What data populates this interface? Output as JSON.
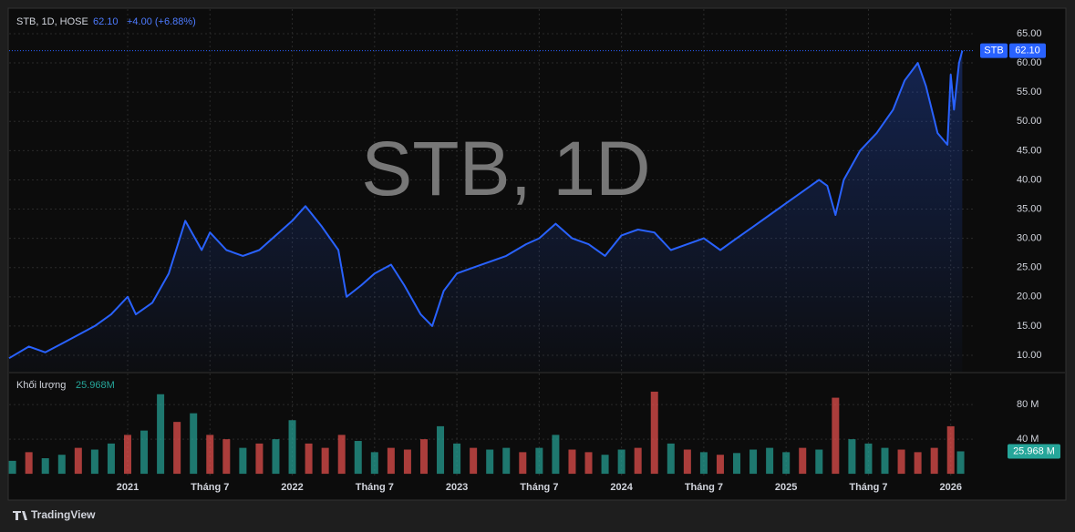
{
  "header": {
    "symbol": "STB, 1D, HOSE",
    "price": "62.10",
    "change": "+4.00 (+6.88%)",
    "watermark": "STB, 1D",
    "badge_symbol": "STB",
    "volume_label": "Khối lượng",
    "volume_value": "25.968M",
    "brand": "TradingView"
  },
  "chart_data": [
    {
      "type": "line",
      "color": "#2962ff",
      "grid": true,
      "x": [
        2020.28,
        2020.4,
        2020.5,
        2020.6,
        2020.7,
        2020.8,
        2020.9,
        2021.0,
        2021.05,
        2021.15,
        2021.25,
        2021.35,
        2021.45,
        2021.5,
        2021.6,
        2021.7,
        2021.8,
        2021.9,
        2022.0,
        2022.08,
        2022.18,
        2022.28,
        2022.33,
        2022.42,
        2022.5,
        2022.6,
        2022.68,
        2022.78,
        2022.85,
        2022.92,
        2023.0,
        2023.1,
        2023.2,
        2023.3,
        2023.42,
        2023.5,
        2023.6,
        2023.7,
        2023.8,
        2023.9,
        2024.0,
        2024.1,
        2024.2,
        2024.3,
        2024.4,
        2024.5,
        2024.6,
        2024.7,
        2024.8,
        2024.9,
        2025.0,
        2025.1,
        2025.2,
        2025.25,
        2025.3,
        2025.35,
        2025.45,
        2025.55,
        2025.65,
        2025.72,
        2025.8,
        2025.85,
        2025.92,
        2025.98,
        2026.0,
        2026.02,
        2026.05,
        2026.07
      ],
      "series": [
        {
          "name": "STB",
          "color": "#2962ff",
          "values": [
            9.5,
            11.5,
            10.5,
            12,
            13.5,
            15,
            17,
            20,
            17,
            19,
            24,
            33,
            28,
            31,
            28,
            27,
            28,
            30.5,
            33,
            35.5,
            32,
            28,
            20,
            22,
            24,
            25.5,
            22,
            17,
            15,
            21,
            24,
            25,
            26,
            27,
            29,
            30,
            32.5,
            30,
            29,
            27,
            30.5,
            31.5,
            31,
            28,
            29,
            30,
            28,
            30,
            32,
            34,
            36,
            38,
            40,
            39,
            34,
            40,
            45,
            48,
            52,
            57,
            60,
            56,
            48,
            46,
            58,
            52,
            60,
            62.1
          ]
        }
      ],
      "xlim": [
        2020.28,
        2026.14
      ],
      "xticks": [
        {
          "value": 2021,
          "label": "2021"
        },
        {
          "value": 2021.5,
          "label": "Tháng 7"
        },
        {
          "value": 2022,
          "label": "2022"
        },
        {
          "value": 2022.5,
          "label": "Tháng 7"
        },
        {
          "value": 2023,
          "label": "2023"
        },
        {
          "value": 2023.5,
          "label": "Tháng 7"
        },
        {
          "value": 2024,
          "label": "2024"
        },
        {
          "value": 2024.5,
          "label": "Tháng 7"
        },
        {
          "value": 2025,
          "label": "2025"
        },
        {
          "value": 2025.5,
          "label": "Tháng 7"
        },
        {
          "value": 2026,
          "label": "2026"
        }
      ],
      "ylim": [
        7.2,
        69.2
      ],
      "yticks": [
        {
          "value": 10,
          "label": "10.00"
        },
        {
          "value": 15,
          "label": "15.00"
        },
        {
          "value": 20,
          "label": "20.00"
        },
        {
          "value": 25,
          "label": "25.00"
        },
        {
          "value": 30,
          "label": "30.00"
        },
        {
          "value": 35,
          "label": "35.00"
        },
        {
          "value": 40,
          "label": "40.00"
        },
        {
          "value": 45,
          "label": "45.00"
        },
        {
          "value": 50,
          "label": "50.00"
        },
        {
          "value": 55,
          "label": "55.00"
        },
        {
          "value": 60,
          "label": "60.00"
        },
        {
          "value": 65,
          "label": "65.00"
        }
      ],
      "last_value": {
        "value": 62.1,
        "label": "62.10"
      }
    },
    {
      "type": "bar",
      "x": [
        2020.3,
        2020.4,
        2020.5,
        2020.6,
        2020.7,
        2020.8,
        2020.9,
        2021.0,
        2021.1,
        2021.2,
        2021.3,
        2021.4,
        2021.5,
        2021.6,
        2021.7,
        2021.8,
        2021.9,
        2022.0,
        2022.1,
        2022.2,
        2022.3,
        2022.4,
        2022.5,
        2022.6,
        2022.7,
        2022.8,
        2022.9,
        2023.0,
        2023.1,
        2023.2,
        2023.3,
        2023.4,
        2023.5,
        2023.6,
        2023.7,
        2023.8,
        2023.9,
        2024.0,
        2024.1,
        2024.2,
        2024.3,
        2024.4,
        2024.5,
        2024.6,
        2024.7,
        2024.8,
        2024.9,
        2025.0,
        2025.1,
        2025.2,
        2025.3,
        2025.4,
        2025.5,
        2025.6,
        2025.7,
        2025.8,
        2025.9,
        2026.0,
        2026.06
      ],
      "values": [
        15,
        25,
        18,
        22,
        30,
        28,
        35,
        45,
        50,
        92,
        60,
        70,
        45,
        40,
        30,
        35,
        40,
        62,
        35,
        30,
        45,
        38,
        25,
        30,
        28,
        40,
        55,
        35,
        30,
        28,
        30,
        25,
        30,
        45,
        28,
        25,
        22,
        28,
        30,
        95,
        35,
        28,
        25,
        22,
        24,
        28,
        30,
        25,
        30,
        28,
        88,
        40,
        35,
        30,
        28,
        25,
        30,
        55,
        25.968
      ],
      "colors": [
        "#26a69a",
        "#ef5350",
        "#26a69a",
        "#26a69a",
        "#ef5350",
        "#26a69a",
        "#26a69a",
        "#ef5350",
        "#26a69a",
        "#26a69a",
        "#ef5350",
        "#26a69a",
        "#ef5350",
        "#ef5350",
        "#26a69a",
        "#ef5350",
        "#26a69a",
        "#26a69a",
        "#ef5350",
        "#ef5350",
        "#ef5350",
        "#26a69a",
        "#26a69a",
        "#ef5350",
        "#ef5350",
        "#ef5350",
        "#26a69a",
        "#26a69a",
        "#ef5350",
        "#26a69a",
        "#26a69a",
        "#ef5350",
        "#26a69a",
        "#26a69a",
        "#ef5350",
        "#ef5350",
        "#26a69a",
        "#26a69a",
        "#ef5350",
        "#ef5350",
        "#26a69a",
        "#ef5350",
        "#26a69a",
        "#ef5350",
        "#26a69a",
        "#26a69a",
        "#26a69a",
        "#26a69a",
        "#ef5350",
        "#26a69a",
        "#ef5350",
        "#26a69a",
        "#26a69a",
        "#26a69a",
        "#ef5350",
        "#ef5350",
        "#ef5350",
        "#ef5350",
        "#26a69a"
      ],
      "ylim": [
        -2,
        116
      ],
      "yticks": [
        {
          "value": 40,
          "label": "40 M"
        },
        {
          "value": 80,
          "label": "80 M"
        }
      ],
      "last_value": {
        "value": 25.968,
        "label": "25.968 M"
      }
    }
  ]
}
